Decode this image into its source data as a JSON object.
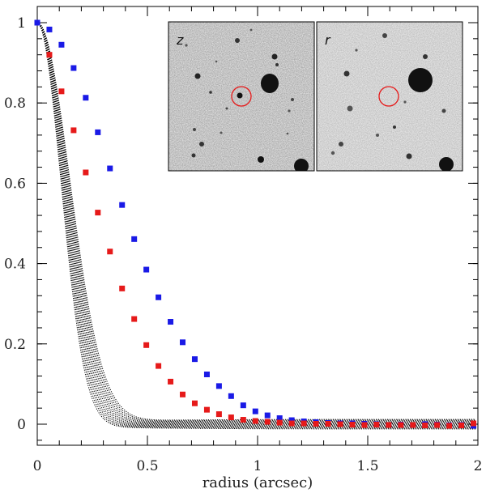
{
  "chart_data": {
    "type": "scatter",
    "title": "",
    "xlabel": "radius (arcsec)",
    "ylabel": "",
    "xlim": [
      0,
      2
    ],
    "ylim": [
      -0.05,
      1.02
    ],
    "x_ticks": [
      0,
      0.5,
      1,
      1.5,
      2
    ],
    "x_tick_labels": [
      "0",
      "0.5",
      "1",
      "1.5",
      "2"
    ],
    "y_ticks": [
      0,
      0.2,
      0.4,
      0.6,
      0.8,
      1
    ],
    "y_tick_labels": [
      "0",
      "0.2",
      "0.4",
      "0.6",
      "0.8",
      "1"
    ],
    "series": [
      {
        "name": "blue",
        "color": "#1a1ae6",
        "marker": "square",
        "x": [
          0.0,
          0.055,
          0.11,
          0.165,
          0.22,
          0.275,
          0.33,
          0.385,
          0.44,
          0.495,
          0.55,
          0.605,
          0.66,
          0.715,
          0.77,
          0.825,
          0.88,
          0.935,
          0.99,
          1.045,
          1.1,
          1.155,
          1.21,
          1.265,
          1.32,
          1.375,
          1.43,
          1.485,
          1.54,
          1.595,
          1.65,
          1.705,
          1.76,
          1.815,
          1.87,
          1.925,
          1.98
        ],
        "y": [
          1.0,
          0.983,
          0.945,
          0.887,
          0.813,
          0.727,
          0.637,
          0.546,
          0.461,
          0.385,
          0.316,
          0.255,
          0.204,
          0.162,
          0.124,
          0.095,
          0.07,
          0.047,
          0.032,
          0.022,
          0.015,
          0.01,
          0.007,
          0.005,
          0.003,
          0.002,
          0.002,
          0.001,
          0.0,
          -0.002,
          -0.001,
          -0.002,
          0.0,
          -0.001,
          -0.003,
          -0.002,
          -0.004
        ]
      },
      {
        "name": "red",
        "color": "#e61a1a",
        "marker": "square",
        "x": [
          0.055,
          0.11,
          0.165,
          0.22,
          0.275,
          0.33,
          0.385,
          0.44,
          0.495,
          0.55,
          0.605,
          0.66,
          0.715,
          0.77,
          0.825,
          0.88,
          0.935,
          0.99,
          1.045,
          1.1,
          1.155,
          1.21,
          1.265,
          1.32,
          1.375,
          1.43,
          1.485,
          1.54,
          1.595,
          1.65,
          1.705,
          1.76,
          1.815,
          1.87,
          1.925,
          1.98
        ],
        "y": [
          0.92,
          0.829,
          0.732,
          0.627,
          0.527,
          0.43,
          0.338,
          0.262,
          0.197,
          0.145,
          0.106,
          0.074,
          0.052,
          0.036,
          0.025,
          0.017,
          0.011,
          0.008,
          0.006,
          0.004,
          0.002,
          0.002,
          0.001,
          0.001,
          0.0,
          -0.001,
          -0.002,
          -0.001,
          -0.002,
          -0.002,
          -0.002,
          -0.003,
          -0.002,
          -0.004,
          -0.003,
          0.002
        ]
      },
      {
        "name": "model-envelope",
        "color": "#000000",
        "marker": "dotted-curves",
        "curve_count": 14,
        "core_width_min": 0.18,
        "core_width_max": 0.245,
        "tail_amplitude": 0.012
      }
    ],
    "insets": [
      {
        "label": "z",
        "target_circle_color": "#e61a1a"
      },
      {
        "label": "r",
        "target_circle_color": "#e61a1a"
      }
    ]
  }
}
